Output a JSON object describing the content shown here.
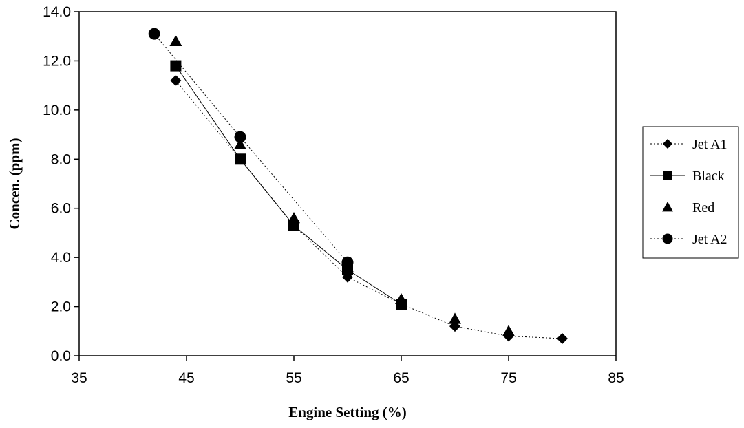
{
  "chart_data": {
    "type": "line",
    "xlabel": "Engine Setting (%)",
    "ylabel": "Concen. (ppm)",
    "xlim": [
      35,
      85
    ],
    "ylim": [
      0,
      14
    ],
    "x_ticks": [
      35,
      45,
      55,
      65,
      75,
      85
    ],
    "y_ticks": [
      0.0,
      2.0,
      4.0,
      6.0,
      8.0,
      10.0,
      12.0,
      14.0
    ],
    "y_tick_labels": [
      "0.0",
      "2.0",
      "4.0",
      "6.0",
      "8.0",
      "10.0",
      "12.0",
      "14.0"
    ],
    "grid": false,
    "legend_position": "right",
    "series": [
      {
        "name": "Jet A1",
        "marker": "diamond",
        "line_style": "dotted",
        "x": [
          44,
          50,
          55,
          60,
          65,
          70,
          75,
          80
        ],
        "y": [
          11.2,
          8.0,
          5.3,
          3.2,
          2.1,
          1.2,
          0.8,
          0.7
        ]
      },
      {
        "name": "Black",
        "marker": "square",
        "line_style": "solid",
        "x": [
          44,
          50,
          55,
          60,
          65
        ],
        "y": [
          11.8,
          8.0,
          5.3,
          3.5,
          2.1
        ]
      },
      {
        "name": "Red",
        "marker": "triangle",
        "line_style": "none",
        "x": [
          44,
          50,
          55,
          60,
          65,
          70,
          75
        ],
        "y": [
          12.8,
          8.6,
          5.6,
          3.6,
          2.3,
          1.5,
          1.0
        ]
      },
      {
        "name": "Jet A2",
        "marker": "circle",
        "line_style": "dotted",
        "x": [
          42,
          50,
          60
        ],
        "y": [
          13.1,
          8.9,
          3.8
        ]
      }
    ]
  }
}
